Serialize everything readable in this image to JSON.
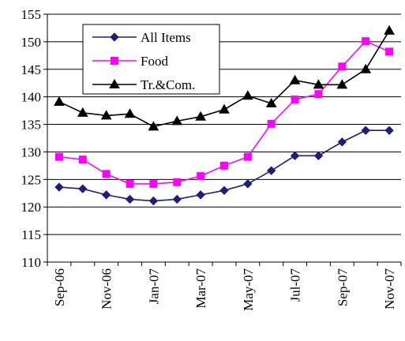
{
  "chart_data": {
    "type": "line",
    "title": "",
    "xlabel": "",
    "ylabel": "",
    "ylim": [
      110,
      155
    ],
    "yticks": [
      "155",
      "150",
      "145",
      "140",
      "135",
      "130",
      "125",
      "120",
      "115",
      "110"
    ],
    "x_tick_labels": [
      "Sep-06",
      "Nov-06",
      "Jan-07",
      "Mar-07",
      "May-07",
      "Jul-07",
      "Sep-07",
      "Nov-07"
    ],
    "grid": "horizontal",
    "legend_position": "top-left",
    "categories": [
      "Sep-06",
      "Oct-06",
      "Nov-06",
      "Dec-06",
      "Jan-07",
      "Feb-07",
      "Mar-07",
      "Apr-07",
      "May-07",
      "Jun-07",
      "Jul-07",
      "Aug-07",
      "Sep-07",
      "Oct-07",
      "Nov-07"
    ],
    "series": [
      {
        "name": "All Items",
        "color": "#1f1f7a",
        "marker": "diamond",
        "values": [
          123.6,
          123.3,
          122.2,
          121.4,
          121.1,
          121.4,
          122.2,
          123.0,
          124.2,
          126.6,
          129.3,
          129.3,
          131.8,
          133.9,
          133.9
        ]
      },
      {
        "name": "Food",
        "color": "#ff00ff",
        "marker": "square",
        "values": [
          129.1,
          128.6,
          126.0,
          124.2,
          124.2,
          124.5,
          125.6,
          127.5,
          129.1,
          135.1,
          139.5,
          140.5,
          145.5,
          150.1,
          148.2
        ]
      },
      {
        "name": "Tr.&Com.",
        "color": "#000000",
        "marker": "triangle",
        "values": [
          139.1,
          137.1,
          136.6,
          136.9,
          134.6,
          135.6,
          136.4,
          137.7,
          140.2,
          138.8,
          143.0,
          142.2,
          142.2,
          145.0,
          152.0
        ]
      }
    ]
  }
}
